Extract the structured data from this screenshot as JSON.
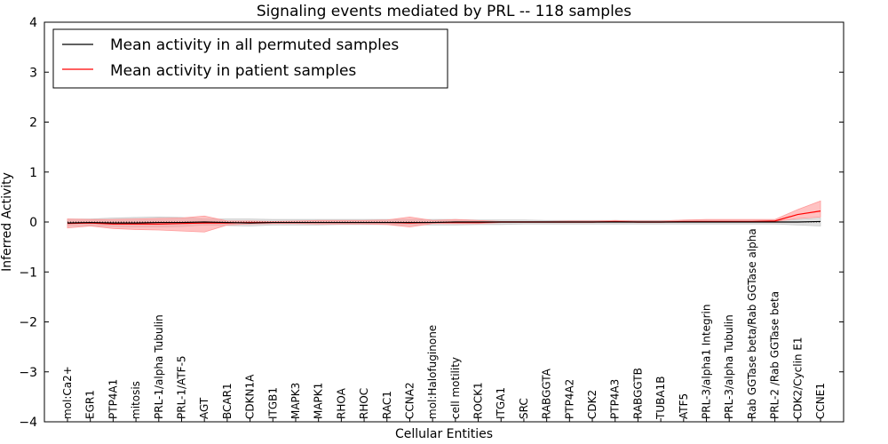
{
  "chart_data": {
    "type": "line",
    "title": "Signaling events mediated by PRL -- 118 samples",
    "xlabel": "Cellular Entities",
    "ylabel": "Inferred Activity",
    "ylim": [
      -4,
      4
    ],
    "yticks": [
      -4,
      -3,
      -2,
      -1,
      0,
      1,
      2,
      3,
      4
    ],
    "ytick_labels": [
      "−4",
      "−3",
      "−2",
      "−1",
      "0",
      "1",
      "2",
      "3",
      "4"
    ],
    "legend_position": "top-left",
    "categories": [
      "mol:Ca2+",
      "EGR1",
      "PTP4A1",
      "mitosis",
      "PRL-1/alpha Tubulin",
      "PRL-1/ATF-5",
      "AGT",
      "BCAR1",
      "CDKN1A",
      "ITGB1",
      "MAPK3",
      "MAPK1",
      "RHOA",
      "RHOC",
      "RAC1",
      "CCNA2",
      "mol:Halofuginone",
      "cell motility",
      "ROCK1",
      "ITGA1",
      "SRC",
      "RABGGTA",
      "PTP4A2",
      "CDK2",
      "PTP4A3",
      "RABGGTB",
      "TUBA1B",
      "ATF5",
      "PRL-3/alpha1 Integrin",
      "PRL-3/alpha Tubulin",
      "Rab GGTase beta/Rab GGTase alpha",
      "PRL-2 /Rab GGTase beta",
      "CDK2/Cyclin E1",
      "CCNE1"
    ],
    "series": [
      {
        "name": "Mean activity in all permuted samples",
        "color": "#000000",
        "band_color": "#c8c8c8",
        "values": [
          -0.02,
          -0.01,
          -0.02,
          -0.02,
          -0.01,
          -0.01,
          0.0,
          -0.01,
          -0.02,
          -0.01,
          -0.01,
          -0.01,
          -0.01,
          -0.01,
          -0.01,
          -0.01,
          -0.01,
          0.0,
          0.0,
          0.0,
          0.0,
          0.0,
          0.0,
          0.0,
          0.0,
          0.0,
          0.0,
          0.0,
          0.0,
          0.0,
          0.0,
          0.0,
          0.0,
          0.01
        ],
        "lower": [
          -0.08,
          -0.07,
          -0.09,
          -0.1,
          -0.1,
          -0.09,
          -0.06,
          -0.07,
          -0.08,
          -0.06,
          -0.06,
          -0.06,
          -0.05,
          -0.05,
          -0.05,
          -0.06,
          -0.06,
          -0.06,
          -0.05,
          -0.05,
          -0.04,
          -0.04,
          -0.04,
          -0.04,
          -0.04,
          -0.04,
          -0.04,
          -0.04,
          -0.04,
          -0.04,
          -0.04,
          -0.04,
          -0.06,
          -0.08
        ],
        "upper": [
          0.06,
          0.06,
          0.08,
          0.09,
          0.1,
          0.09,
          0.06,
          0.06,
          0.06,
          0.05,
          0.05,
          0.05,
          0.05,
          0.05,
          0.05,
          0.05,
          0.05,
          0.05,
          0.04,
          0.04,
          0.04,
          0.03,
          0.03,
          0.03,
          0.03,
          0.03,
          0.03,
          0.03,
          0.03,
          0.03,
          0.03,
          0.03,
          0.05,
          0.08
        ]
      },
      {
        "name": "Mean activity in patient samples",
        "color": "#ff0000",
        "band_color": "#ff9a9a",
        "values": [
          -0.03,
          -0.02,
          -0.04,
          -0.04,
          -0.04,
          -0.03,
          -0.02,
          -0.02,
          -0.01,
          -0.01,
          -0.01,
          -0.01,
          -0.01,
          -0.01,
          -0.01,
          -0.02,
          -0.01,
          -0.01,
          -0.01,
          0.0,
          0.0,
          0.0,
          0.0,
          0.0,
          0.01,
          0.0,
          0.0,
          0.01,
          0.01,
          0.01,
          0.01,
          0.02,
          0.15,
          0.22
        ],
        "lower": [
          -0.12,
          -0.08,
          -0.13,
          -0.15,
          -0.16,
          -0.18,
          -0.2,
          -0.06,
          -0.04,
          -0.03,
          -0.03,
          -0.04,
          -0.04,
          -0.04,
          -0.05,
          -0.1,
          -0.03,
          -0.03,
          -0.03,
          -0.01,
          -0.01,
          -0.01,
          -0.01,
          -0.01,
          0.0,
          -0.01,
          -0.01,
          0.0,
          0.0,
          0.0,
          0.0,
          0.01,
          0.07,
          0.1
        ],
        "upper": [
          0.06,
          0.05,
          0.05,
          0.06,
          0.07,
          0.08,
          0.12,
          0.02,
          0.02,
          0.01,
          0.02,
          0.03,
          0.03,
          0.03,
          0.04,
          0.1,
          0.03,
          0.05,
          0.03,
          0.01,
          0.01,
          0.01,
          0.02,
          0.02,
          0.03,
          0.02,
          0.02,
          0.04,
          0.05,
          0.05,
          0.05,
          0.05,
          0.25,
          0.42
        ]
      }
    ]
  }
}
